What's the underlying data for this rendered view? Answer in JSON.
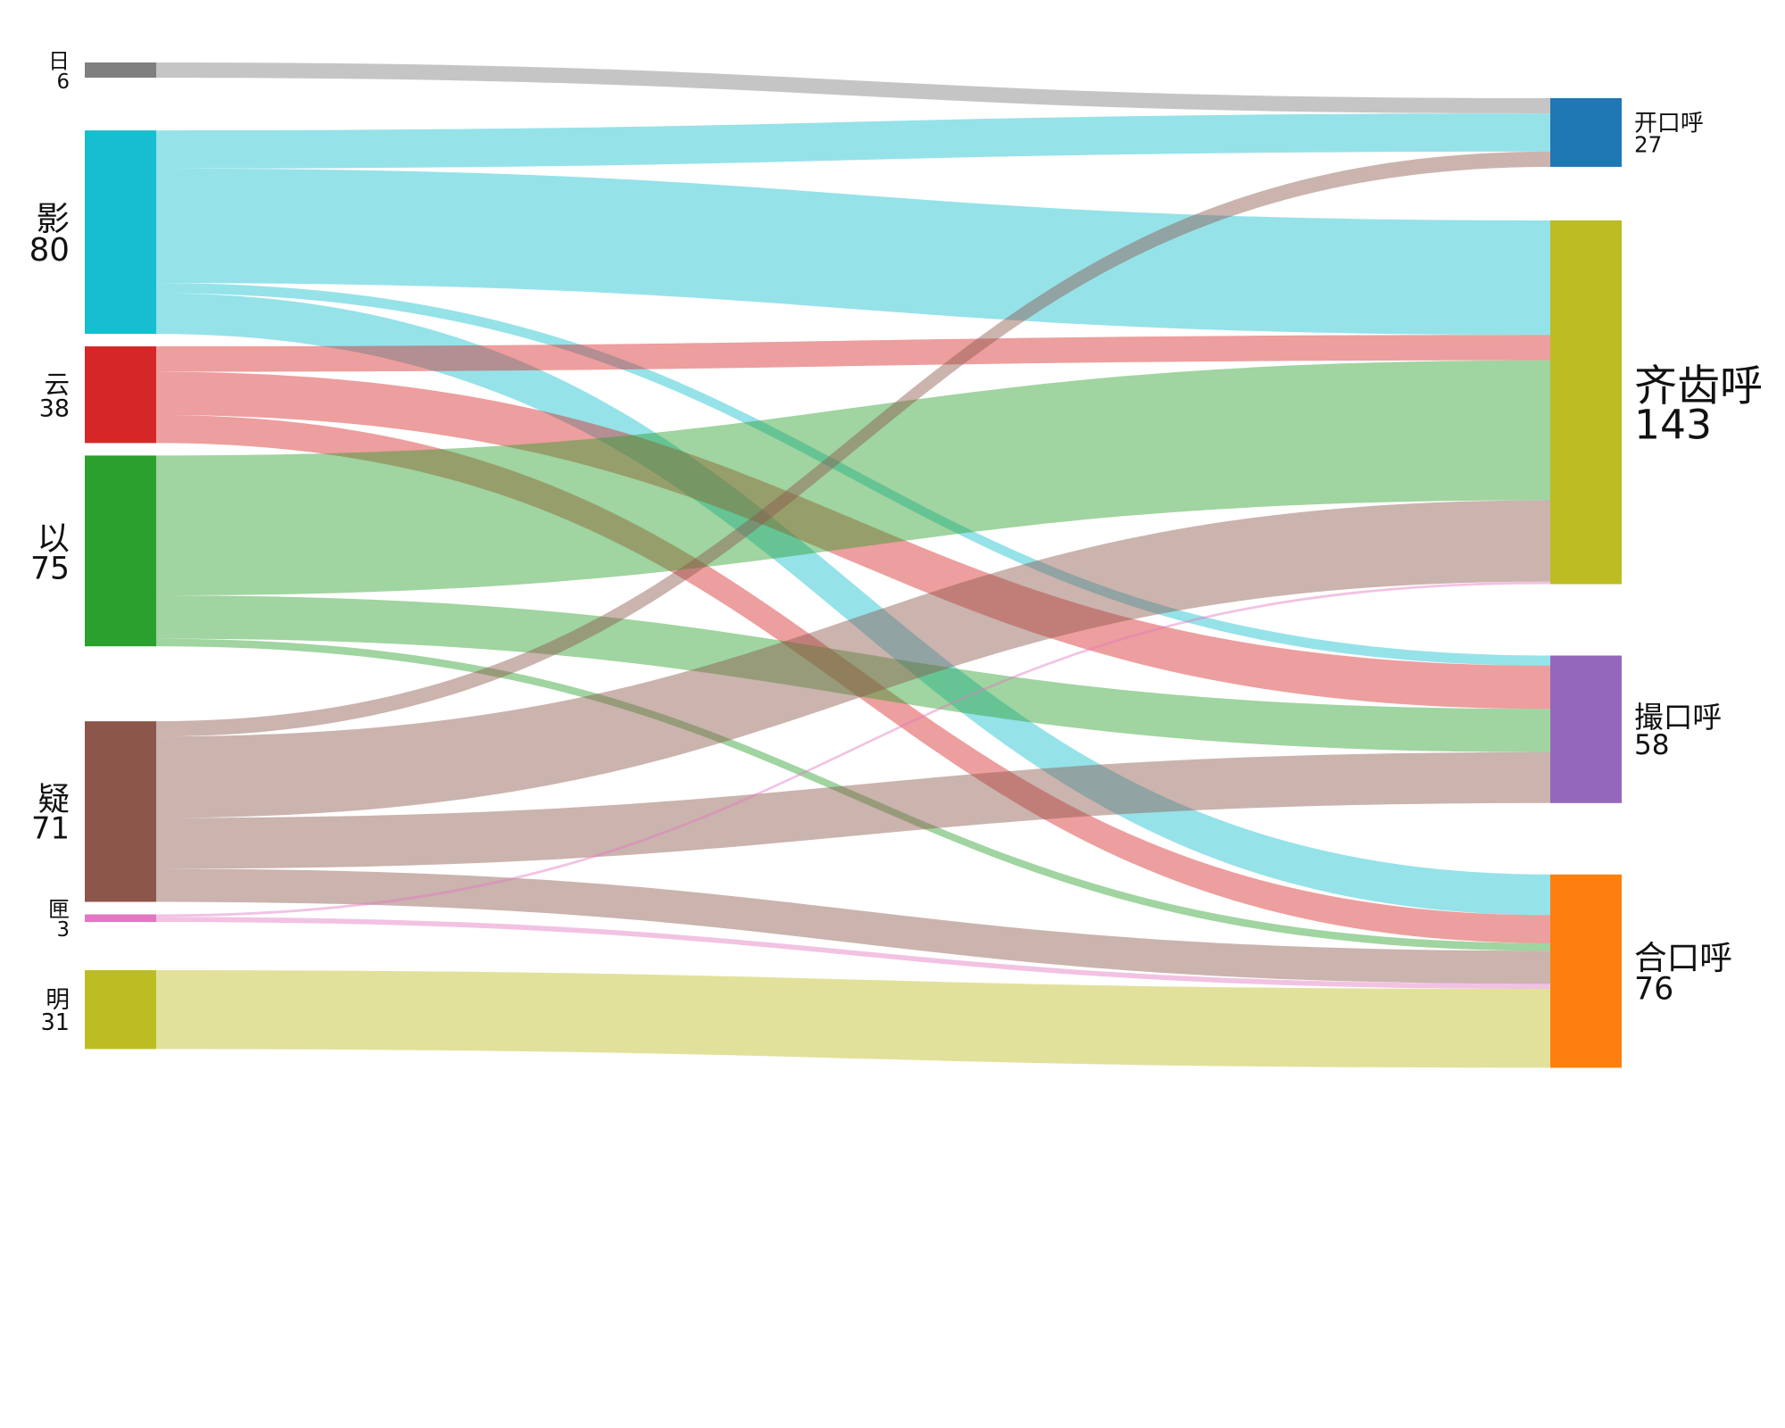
{
  "chart_data": {
    "type": "sankey",
    "title": "",
    "sources": [
      {
        "id": "ri",
        "name": "日",
        "value": 6,
        "color": "#7f7f7f"
      },
      {
        "id": "ying",
        "name": "影",
        "value": 80,
        "color": "#17becf"
      },
      {
        "id": "yun",
        "name": "云",
        "value": 38,
        "color": "#d62728"
      },
      {
        "id": "yi",
        "name": "以",
        "value": 75,
        "color": "#2ca02c"
      },
      {
        "id": "yi2",
        "name": "疑",
        "value": 71,
        "color": "#8c564b"
      },
      {
        "id": "xia",
        "name": "匣",
        "value": 3,
        "color": "#e377c2"
      },
      {
        "id": "ming",
        "name": "明",
        "value": 31,
        "color": "#bcbd22"
      }
    ],
    "targets": [
      {
        "id": "kai",
        "name": "开口呼",
        "value": 27,
        "color": "#1f77b4"
      },
      {
        "id": "qi",
        "name": "齐齿呼",
        "value": 143,
        "color": "#bcbd22"
      },
      {
        "id": "cuo",
        "name": "撮口呼",
        "value": 58,
        "color": "#9467bd"
      },
      {
        "id": "he",
        "name": "合口呼",
        "value": 76,
        "color": "#ff7f0e"
      }
    ],
    "links": [
      {
        "source": "ri",
        "target": "kai",
        "value": 6
      },
      {
        "source": "ying",
        "target": "kai",
        "value": 15
      },
      {
        "source": "ying",
        "target": "qi",
        "value": 45
      },
      {
        "source": "ying",
        "target": "cuo",
        "value": 4
      },
      {
        "source": "ying",
        "target": "he",
        "value": 16
      },
      {
        "source": "yun",
        "target": "qi",
        "value": 10
      },
      {
        "source": "yun",
        "target": "cuo",
        "value": 17
      },
      {
        "source": "yun",
        "target": "he",
        "value": 11
      },
      {
        "source": "yi",
        "target": "qi",
        "value": 55
      },
      {
        "source": "yi",
        "target": "cuo",
        "value": 17
      },
      {
        "source": "yi",
        "target": "he",
        "value": 3
      },
      {
        "source": "yi2",
        "target": "kai",
        "value": 6
      },
      {
        "source": "yi2",
        "target": "qi",
        "value": 32
      },
      {
        "source": "yi2",
        "target": "cuo",
        "value": 20
      },
      {
        "source": "yi2",
        "target": "he",
        "value": 13
      },
      {
        "source": "xia",
        "target": "qi",
        "value": 1
      },
      {
        "source": "xia",
        "target": "he",
        "value": 2
      },
      {
        "source": "ming",
        "target": "he",
        "value": 31
      }
    ]
  }
}
